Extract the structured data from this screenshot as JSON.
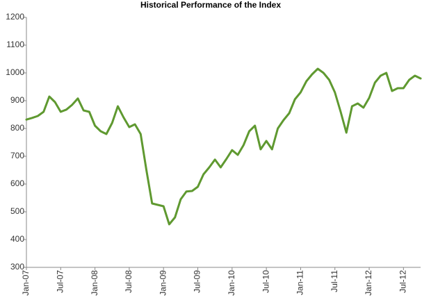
{
  "chart_data": {
    "type": "line",
    "title": "Historical Performance of the Index",
    "categories": [
      "Jan-07",
      null,
      null,
      null,
      null,
      null,
      "Jul-07",
      null,
      null,
      null,
      null,
      null,
      "Jan-08",
      null,
      null,
      null,
      null,
      null,
      "Jul-08",
      null,
      null,
      null,
      null,
      null,
      "Jan-09",
      null,
      null,
      null,
      null,
      null,
      "Jul-09",
      null,
      null,
      null,
      null,
      null,
      "Jan-10",
      null,
      null,
      null,
      null,
      null,
      "Jul-10",
      null,
      null,
      null,
      null,
      null,
      "Jan-11",
      null,
      null,
      null,
      null,
      null,
      "Jul-11",
      null,
      null,
      null,
      null,
      null,
      "Jan-12",
      null,
      null,
      null,
      null,
      null,
      "Jul-12",
      null,
      null,
      null
    ],
    "values": [
      832,
      838,
      845,
      860,
      915,
      895,
      860,
      868,
      885,
      908,
      865,
      860,
      810,
      790,
      780,
      820,
      880,
      840,
      805,
      815,
      780,
      650,
      530,
      525,
      520,
      455,
      480,
      545,
      573,
      575,
      590,
      635,
      660,
      688,
      660,
      690,
      722,
      705,
      740,
      790,
      810,
      725,
      755,
      725,
      800,
      830,
      855,
      905,
      930,
      970,
      995,
      1015,
      1000,
      975,
      930,
      860,
      785,
      880,
      890,
      875,
      910,
      965,
      990,
      1000,
      935,
      945,
      945,
      975,
      990,
      980
    ],
    "color": "#5f9930",
    "ylim": [
      300,
      1200
    ],
    "yticks": [
      300,
      400,
      500,
      600,
      700,
      800,
      900,
      1000,
      1100,
      1200
    ],
    "grid": false
  }
}
